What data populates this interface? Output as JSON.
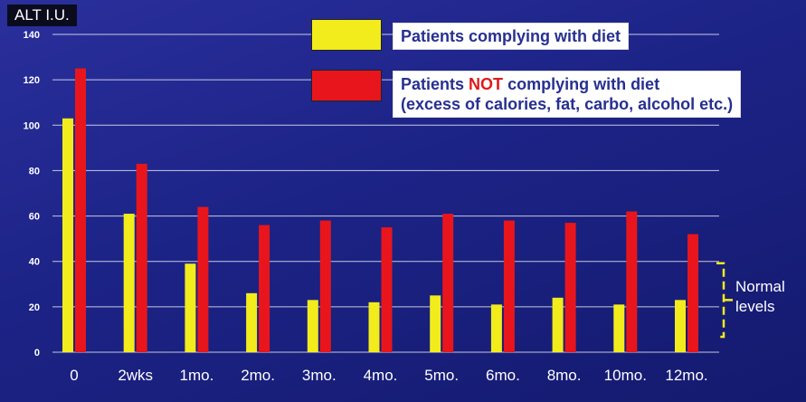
{
  "chart_data": {
    "type": "bar",
    "ylabel": "ALT I.U.",
    "ylim": [
      0,
      140
    ],
    "yticks": [
      0,
      20,
      40,
      60,
      80,
      100,
      120,
      140
    ],
    "grid": true,
    "categories": [
      "0",
      "2wks",
      "1mo.",
      "2mo.",
      "3mo.",
      "4mo.",
      "5mo.",
      "6mo.",
      "8mo.",
      "10mo.",
      "12mo."
    ],
    "series": [
      {
        "name": "Patients complying with diet",
        "color": "#f2ec1c",
        "values": [
          103,
          61,
          39,
          26,
          23,
          22,
          25,
          21,
          24,
          21,
          23
        ]
      },
      {
        "name": "Patients NOT complying with diet (excess of calories, fat, carbo, alcohol etc.)",
        "color": "#e8161c",
        "values": [
          125,
          83,
          64,
          56,
          58,
          55,
          61,
          58,
          57,
          62,
          52
        ]
      }
    ],
    "legend": {
      "complying": "Patients complying with diet",
      "not_prefix": "Patients",
      "not_word": "NOT",
      "not_suffix": "complying with diet",
      "not_line2": "(excess of calories, fat, carbo, alcohol etc.)",
      "placement": "top-right"
    },
    "annotation": {
      "line1": "Normal",
      "line2": "levels",
      "range": [
        0,
        40
      ],
      "color": "#f2ec1c"
    }
  }
}
